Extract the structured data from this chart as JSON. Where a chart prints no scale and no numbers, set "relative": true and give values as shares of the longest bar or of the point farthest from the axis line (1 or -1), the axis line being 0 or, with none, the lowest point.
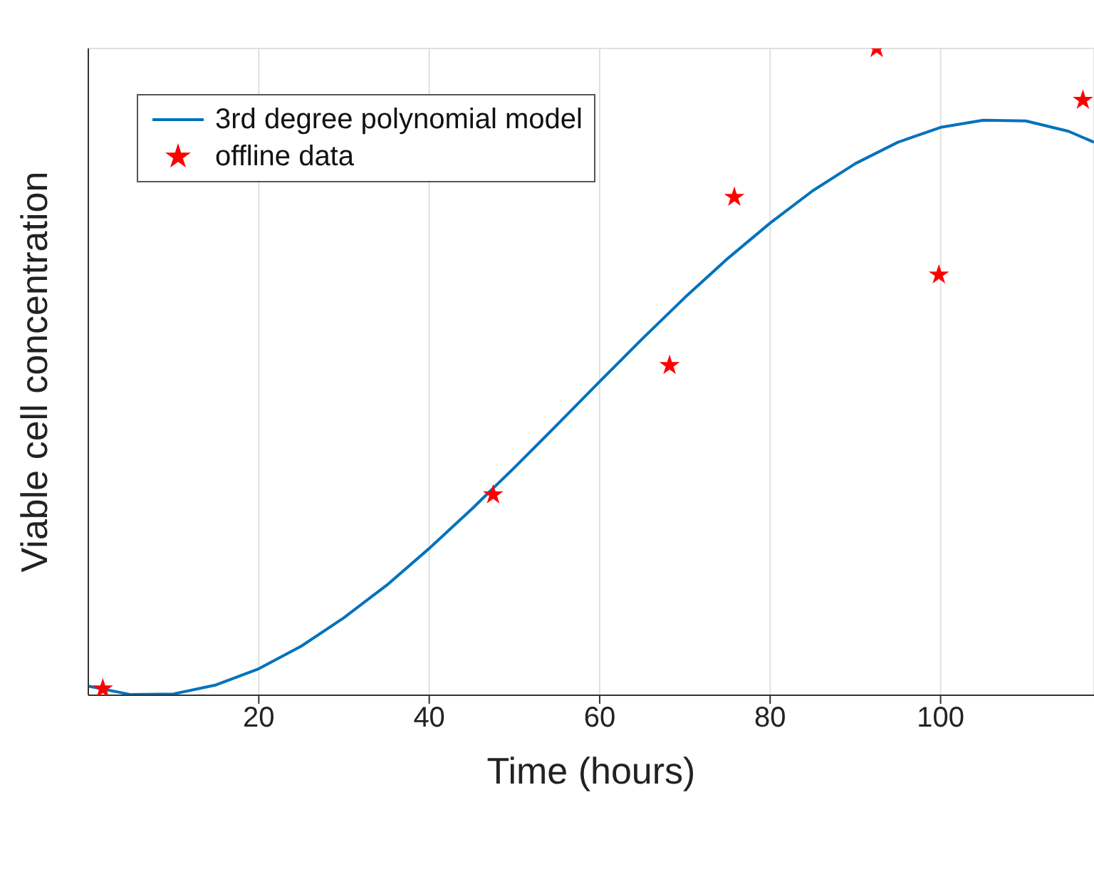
{
  "chart_data": {
    "type": "line",
    "xlabel": "Time (hours)",
    "ylabel": "Viable cell concentration",
    "relative": true,
    "xlim": [
      0,
      118
    ],
    "xticks": [
      20,
      40,
      60,
      80,
      100
    ],
    "grid": true,
    "legend": "top left",
    "series": [
      {
        "name": "3rd degree polynomial model",
        "color": "#0072bd",
        "marker": "none",
        "x": [
          0,
          5,
          10,
          15,
          20,
          25,
          30,
          35,
          40,
          45,
          50,
          55,
          60,
          65,
          70,
          75,
          80,
          85,
          90,
          95,
          100,
          105,
          110,
          115,
          118
        ],
        "values": [
          0.014,
          0.001,
          0.002,
          0.016,
          0.041,
          0.076,
          0.12,
          0.17,
          0.227,
          0.288,
          0.352,
          0.418,
          0.485,
          0.551,
          0.615,
          0.675,
          0.73,
          0.78,
          0.822,
          0.855,
          0.878,
          0.889,
          0.888,
          0.872,
          0.855
        ]
      },
      {
        "name": "offline data",
        "type": "scatter",
        "color": "#ff0000",
        "marker": "star",
        "x": [
          1.7,
          47.5,
          68.2,
          75.8,
          92.5,
          99.8,
          116.7
        ],
        "values": [
          0.01,
          0.31,
          0.51,
          0.77,
          1.0,
          0.65,
          0.92
        ]
      }
    ]
  }
}
